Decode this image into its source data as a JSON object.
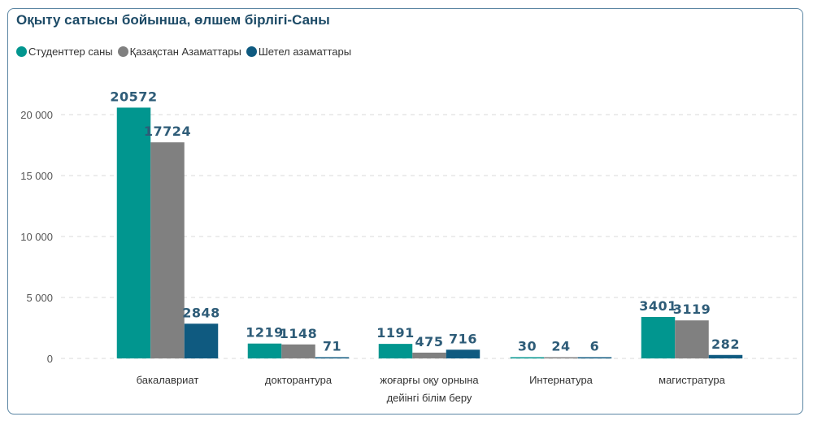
{
  "chart_data": {
    "type": "bar",
    "title": "Оқыту сатысы бойынша, өлшем бірлігі-Саны",
    "categories": [
      "бакалавриат",
      "докторантура",
      "жоғарғы оқу орнына дейінгі білім беру",
      "Интернатура",
      "магистратура"
    ],
    "category_lines": [
      [
        "бакалавриат"
      ],
      [
        "докторантура"
      ],
      [
        "жоғарғы оқу орнына",
        "дейінгі білім беру"
      ],
      [
        "Интернатура"
      ],
      [
        "магистратура"
      ]
    ],
    "series": [
      {
        "name": "Студенттер саны",
        "color": "#01968f",
        "values": [
          20572,
          1219,
          1191,
          30,
          3401
        ]
      },
      {
        "name": "Қазақстан Азаматтары",
        "color": "#808080",
        "values": [
          17724,
          1148,
          475,
          24,
          3119
        ]
      },
      {
        "name": "Шетел азаматтары",
        "color": "#0f5a80",
        "values": [
          2848,
          71,
          716,
          6,
          282
        ]
      }
    ],
    "ylim": [
      0,
      20000
    ],
    "yticks": [
      0,
      5000,
      10000,
      15000,
      20000
    ],
    "ytick_labels": [
      "0",
      "5 000",
      "10 000",
      "15 000",
      "20 000"
    ],
    "xlabel": "",
    "ylabel": "",
    "grid": true,
    "legend_position": "top-left"
  }
}
